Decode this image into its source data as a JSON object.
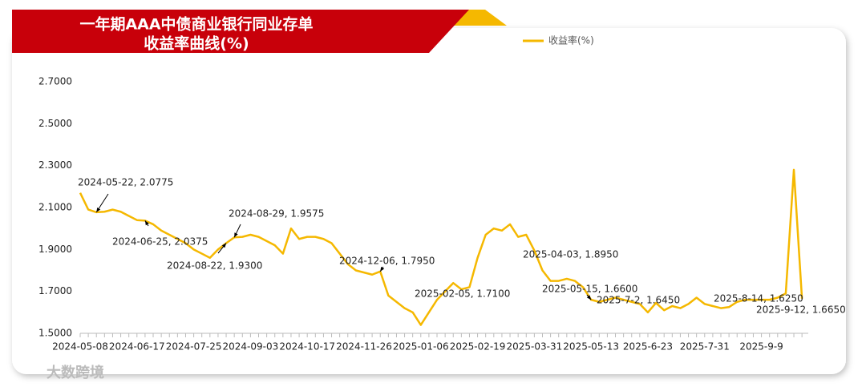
{
  "chart_data": {
    "type": "line",
    "title_lines": [
      "一年期AAA中债商业银行同业存单",
      "收益率曲线(%)"
    ],
    "watermark": "大数跨境",
    "categories": [
      "2024-05-08",
      null,
      null,
      null,
      null,
      null,
      null,
      "2024-06-17",
      null,
      null,
      null,
      null,
      null,
      null,
      "2024-07-25",
      null,
      null,
      null,
      null,
      null,
      null,
      "2024-09-03",
      null,
      null,
      null,
      null,
      null,
      null,
      "2024-10-17",
      null,
      null,
      null,
      null,
      null,
      null,
      "2024-11-26",
      null,
      null,
      null,
      null,
      null,
      null,
      "2025-01-06",
      null,
      null,
      null,
      null,
      null,
      null,
      "2025-02-19",
      null,
      null,
      null,
      null,
      null,
      null,
      "2025-03-31",
      null,
      null,
      null,
      null,
      null,
      null,
      "2025-05-13",
      null,
      null,
      null,
      null,
      null,
      null,
      "2025-6-23",
      null,
      null,
      null,
      null,
      null,
      null,
      "2025-7-31",
      null,
      null,
      null,
      null,
      null,
      null,
      "2025-9-9",
      null,
      null,
      null,
      null,
      null
    ],
    "series": [
      {
        "name": "收益率(%)",
        "color": "#f5b800",
        "values": [
          2.17,
          2.09,
          2.0775,
          2.08,
          2.09,
          2.08,
          2.06,
          2.04,
          2.0375,
          2.02,
          1.99,
          1.97,
          1.95,
          1.93,
          1.9,
          1.88,
          1.86,
          1.9,
          1.93,
          1.9575,
          1.96,
          1.97,
          1.96,
          1.94,
          1.92,
          1.88,
          2.0,
          1.95,
          1.96,
          1.96,
          1.95,
          1.93,
          1.88,
          1.83,
          1.8,
          1.79,
          1.78,
          1.795,
          1.68,
          1.65,
          1.62,
          1.6,
          1.54,
          1.6,
          1.66,
          1.7,
          1.74,
          1.71,
          1.72,
          1.86,
          1.97,
          2.0,
          1.99,
          2.02,
          1.96,
          1.97,
          1.895,
          1.8,
          1.75,
          1.75,
          1.76,
          1.75,
          1.72,
          1.66,
          1.65,
          1.66,
          1.67,
          1.66,
          1.65,
          1.64,
          1.6,
          1.645,
          1.61,
          1.63,
          1.62,
          1.64,
          1.67,
          1.64,
          1.63,
          1.62,
          1.625,
          1.65,
          1.66,
          1.66,
          1.66,
          1.66,
          1.67,
          1.69,
          2.28,
          1.665
        ]
      }
    ],
    "annotations": [
      "2024-05-22, 2.0775",
      "2024-06-25, 2.0375",
      "2024-08-22, 1.9300",
      "2024-08-29, 1.9575",
      "2024-12-06, 1.7950",
      "2025-02-05, 1.7100",
      "2025-04-03, 1.8950",
      "2025-05-15, 1.6600",
      "2025-7-2, 1.6450",
      "2025-8-14, 1.6250",
      "2025-9-12, 1.6650"
    ],
    "ylim": [
      1.5,
      2.7
    ],
    "yticks": [
      {
        "value": 1.5,
        "label": "1.5000"
      },
      {
        "value": 1.7,
        "label": "1.7000"
      },
      {
        "value": 1.9,
        "label": "1.9000"
      },
      {
        "value": 2.1,
        "label": "2.1000"
      },
      {
        "value": 2.3,
        "label": "2.3000"
      },
      {
        "value": 2.5,
        "label": "2.5000"
      },
      {
        "value": 2.7,
        "label": "2.7000"
      }
    ],
    "grid": false,
    "legend": "top"
  }
}
